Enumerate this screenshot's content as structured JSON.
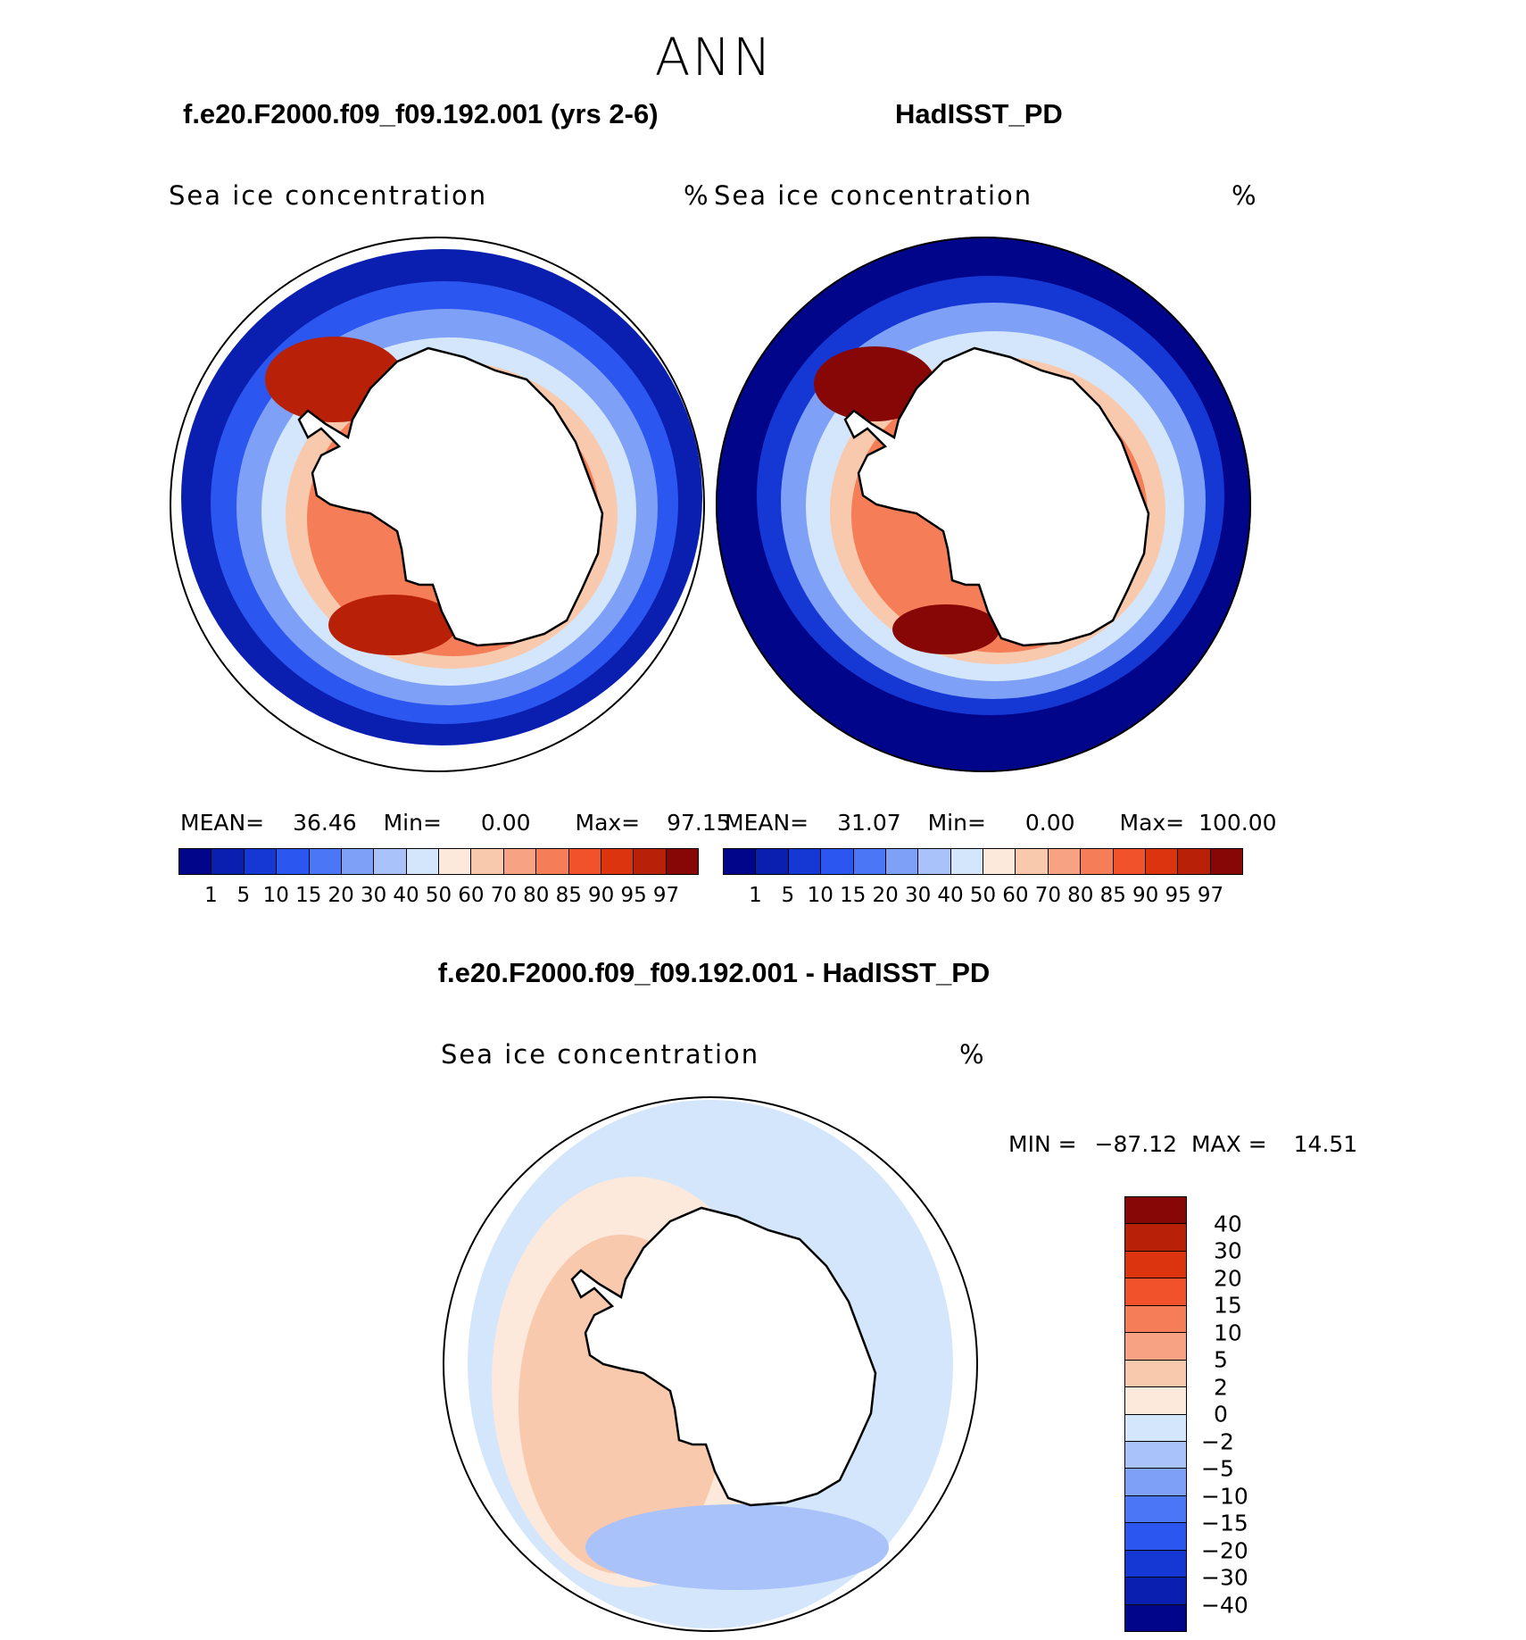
{
  "page_title": "ANN",
  "chart_data": [
    {
      "type": "heatmap",
      "title": "f.e20.F2000.f09_f09.192.001 (yrs 2-6)",
      "variable": "Sea ice concentration",
      "units": "%",
      "projection": "south-polar-stereographic",
      "stats": {
        "mean_label": "MEAN=",
        "mean": "36.46",
        "min_label": "Min=",
        "min": "0.00",
        "max_label": "Max=",
        "max": "97.15"
      },
      "colorbar": {
        "orientation": "horizontal",
        "levels": [
          "1",
          "5",
          "10",
          "15",
          "20",
          "30",
          "40",
          "50",
          "60",
          "70",
          "80",
          "85",
          "90",
          "95",
          "97"
        ],
        "colors": [
          "#00058a",
          "#0a1fb0",
          "#1538d4",
          "#2b56f0",
          "#4b76f5",
          "#7fa0f7",
          "#a9c2fa",
          "#d4e6fb",
          "#fce9dc",
          "#f9c9ad",
          "#f6a283",
          "#f57d57",
          "#f2522b",
          "#dd3410",
          "#b82008",
          "#870707"
        ]
      },
      "bands": [
        {
          "value": "1",
          "color": "#0a1fb0"
        },
        {
          "value": "10",
          "color": "#2b56f0"
        },
        {
          "value": "30",
          "color": "#7fa0f7"
        },
        {
          "value": "50",
          "color": "#d4e6fb"
        },
        {
          "value": "70",
          "color": "#f9c9ad"
        },
        {
          "value": "85",
          "color": "#f57d57"
        }
      ],
      "hotspot": {
        "value": "97",
        "color": "#b82008"
      }
    },
    {
      "type": "heatmap",
      "title": "HadISST_PD",
      "variable": "Sea ice concentration",
      "units": "%",
      "projection": "south-polar-stereographic",
      "stats": {
        "mean_label": "MEAN=",
        "mean": "31.07",
        "min_label": "Min=",
        "min": "0.00",
        "max_label": "Max=",
        "max": "100.00"
      },
      "colorbar": {
        "orientation": "horizontal",
        "levels": [
          "1",
          "5",
          "10",
          "15",
          "20",
          "30",
          "40",
          "50",
          "60",
          "70",
          "80",
          "85",
          "90",
          "95",
          "97"
        ],
        "colors": [
          "#00058a",
          "#0a1fb0",
          "#1538d4",
          "#2b56f0",
          "#4b76f5",
          "#7fa0f7",
          "#a9c2fa",
          "#d4e6fb",
          "#fce9dc",
          "#f9c9ad",
          "#f6a283",
          "#f57d57",
          "#f2522b",
          "#dd3410",
          "#b82008",
          "#870707"
        ]
      },
      "bands": [
        {
          "value": "0",
          "color": "#00058a"
        },
        {
          "value": "10",
          "color": "#1538d4"
        },
        {
          "value": "30",
          "color": "#7fa0f7"
        },
        {
          "value": "50",
          "color": "#d4e6fb"
        },
        {
          "value": "70",
          "color": "#f9c9ad"
        },
        {
          "value": "85",
          "color": "#f57d57"
        }
      ],
      "hotspot": {
        "value": "100",
        "color": "#870707"
      }
    },
    {
      "type": "heatmap",
      "title": "f.e20.F2000.f09_f09.192.001 - HadISST_PD",
      "variable": "Sea ice concentration",
      "units": "%",
      "projection": "south-polar-stereographic",
      "stats": {
        "min_label": "MIN =",
        "min": "−87.12",
        "max_label": "MAX =",
        "max": "14.51"
      },
      "colorbar": {
        "orientation": "vertical",
        "levels": [
          "40",
          "30",
          "20",
          "15",
          "10",
          "5",
          "2",
          "0",
          "−2",
          "−5",
          "−10",
          "−15",
          "−20",
          "−30",
          "−40"
        ],
        "colors": [
          "#870707",
          "#b82008",
          "#dd3410",
          "#f2522b",
          "#f57d57",
          "#f6a283",
          "#f9c9ad",
          "#fce9dc",
          "#d4e6fb",
          "#a9c2fa",
          "#7fa0f7",
          "#4b76f5",
          "#2b56f0",
          "#1538d4",
          "#0a1fb0",
          "#00058a"
        ]
      },
      "bands": [
        {
          "value": "-2",
          "color": "#d4e6fb"
        },
        {
          "value": "2",
          "color": "#fce9dc"
        },
        {
          "value": "5",
          "color": "#f9c9ad"
        },
        {
          "value": "-5",
          "color": "#a9c2fa"
        }
      ]
    }
  ]
}
